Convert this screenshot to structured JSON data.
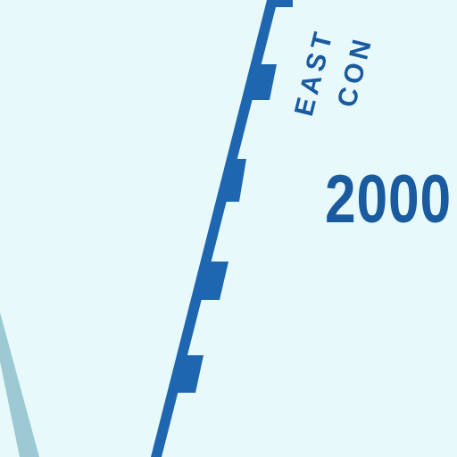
{
  "map": {
    "background_color": "#e8f9fc",
    "boundary_color": "#1f66b0",
    "water_color": "#9cc9d3",
    "text_color": "#1a5a9e",
    "labels": {
      "line1": "EAST",
      "line2": "CON",
      "number": "2000"
    }
  }
}
